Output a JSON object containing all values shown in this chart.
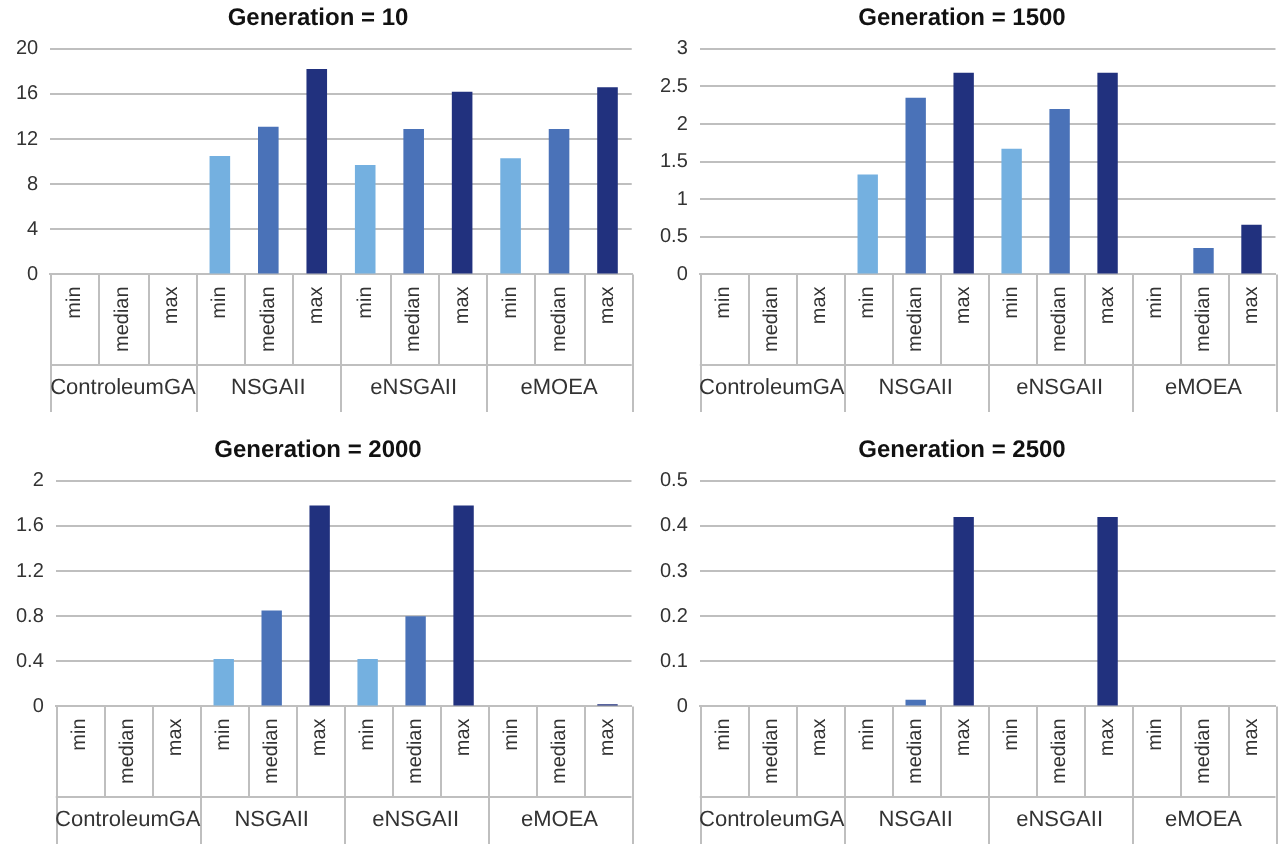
{
  "chart_data": [
    {
      "type": "bar",
      "title": "Generation = 10",
      "categories": [
        "min",
        "median",
        "max",
        "min",
        "median",
        "max",
        "min",
        "median",
        "max",
        "min",
        "median",
        "max"
      ],
      "values": [
        0,
        0,
        0,
        10.5,
        13.1,
        18.2,
        9.7,
        12.9,
        16.2,
        10.3,
        12.9,
        16.6
      ],
      "colors": [
        "#74b0e0",
        "#4a72b8",
        "#21317e",
        "#74b0e0",
        "#4a72b8",
        "#21317e",
        "#74b0e0",
        "#4a72b8",
        "#21317e",
        "#74b0e0",
        "#4a72b8",
        "#21317e"
      ],
      "ylim": [
        0,
        20
      ],
      "yticks": [
        0,
        4,
        8,
        12,
        16,
        20
      ],
      "grid": "y",
      "legend": false,
      "annotations": [
        "ControleumGA",
        "NSGAII",
        "eNSGAII",
        "eMOEA"
      ]
    },
    {
      "type": "bar",
      "title": "Generation = 1500",
      "categories": [
        "min",
        "median",
        "max",
        "min",
        "median",
        "max",
        "min",
        "median",
        "max",
        "min",
        "median",
        "max"
      ],
      "values": [
        0,
        0,
        0,
        1.33,
        2.35,
        2.68,
        1.67,
        2.2,
        2.68,
        0,
        0.35,
        0.66
      ],
      "colors": [
        "#74b0e0",
        "#4a72b8",
        "#21317e",
        "#74b0e0",
        "#4a72b8",
        "#21317e",
        "#74b0e0",
        "#4a72b8",
        "#21317e",
        "#74b0e0",
        "#4a72b8",
        "#21317e"
      ],
      "ylim": [
        0,
        3
      ],
      "yticks": [
        0,
        0.5,
        1,
        1.5,
        2,
        2.5,
        3
      ],
      "grid": "y",
      "legend": false,
      "annotations": [
        "ControleumGA",
        "NSGAII",
        "eNSGAII",
        "eMOEA"
      ]
    },
    {
      "type": "bar",
      "title": "Generation = 2000",
      "categories": [
        "min",
        "median",
        "max",
        "min",
        "median",
        "max",
        "min",
        "median",
        "max",
        "min",
        "median",
        "max"
      ],
      "values": [
        0,
        0,
        0,
        0.42,
        0.85,
        1.78,
        0.42,
        0.8,
        1.78,
        0,
        0,
        0.02
      ],
      "colors": [
        "#74b0e0",
        "#4a72b8",
        "#21317e",
        "#74b0e0",
        "#4a72b8",
        "#21317e",
        "#74b0e0",
        "#4a72b8",
        "#21317e",
        "#74b0e0",
        "#4a72b8",
        "#21317e"
      ],
      "ylim": [
        0,
        2
      ],
      "yticks": [
        0,
        0.4,
        0.8,
        1.2,
        1.6,
        2
      ],
      "grid": "y",
      "legend": false,
      "annotations": [
        "ControleumGA",
        "NSGAII",
        "eNSGAII",
        "eMOEA"
      ]
    },
    {
      "type": "bar",
      "title": "Generation = 2500",
      "categories": [
        "min",
        "median",
        "max",
        "min",
        "median",
        "max",
        "min",
        "median",
        "max",
        "min",
        "median",
        "max"
      ],
      "values": [
        0,
        0,
        0,
        0,
        0.015,
        0.42,
        0,
        0,
        0.42,
        0,
        0,
        0
      ],
      "colors": [
        "#74b0e0",
        "#4a72b8",
        "#21317e",
        "#74b0e0",
        "#4a72b8",
        "#21317e",
        "#74b0e0",
        "#4a72b8",
        "#21317e",
        "#74b0e0",
        "#4a72b8",
        "#21317e"
      ],
      "ylim": [
        0,
        0.5
      ],
      "yticks": [
        0,
        0.1,
        0.2,
        0.3,
        0.4,
        0.5
      ],
      "grid": "y",
      "legend": false,
      "annotations": [
        "ControleumGA",
        "NSGAII",
        "eNSGAII",
        "eMOEA"
      ]
    }
  ]
}
